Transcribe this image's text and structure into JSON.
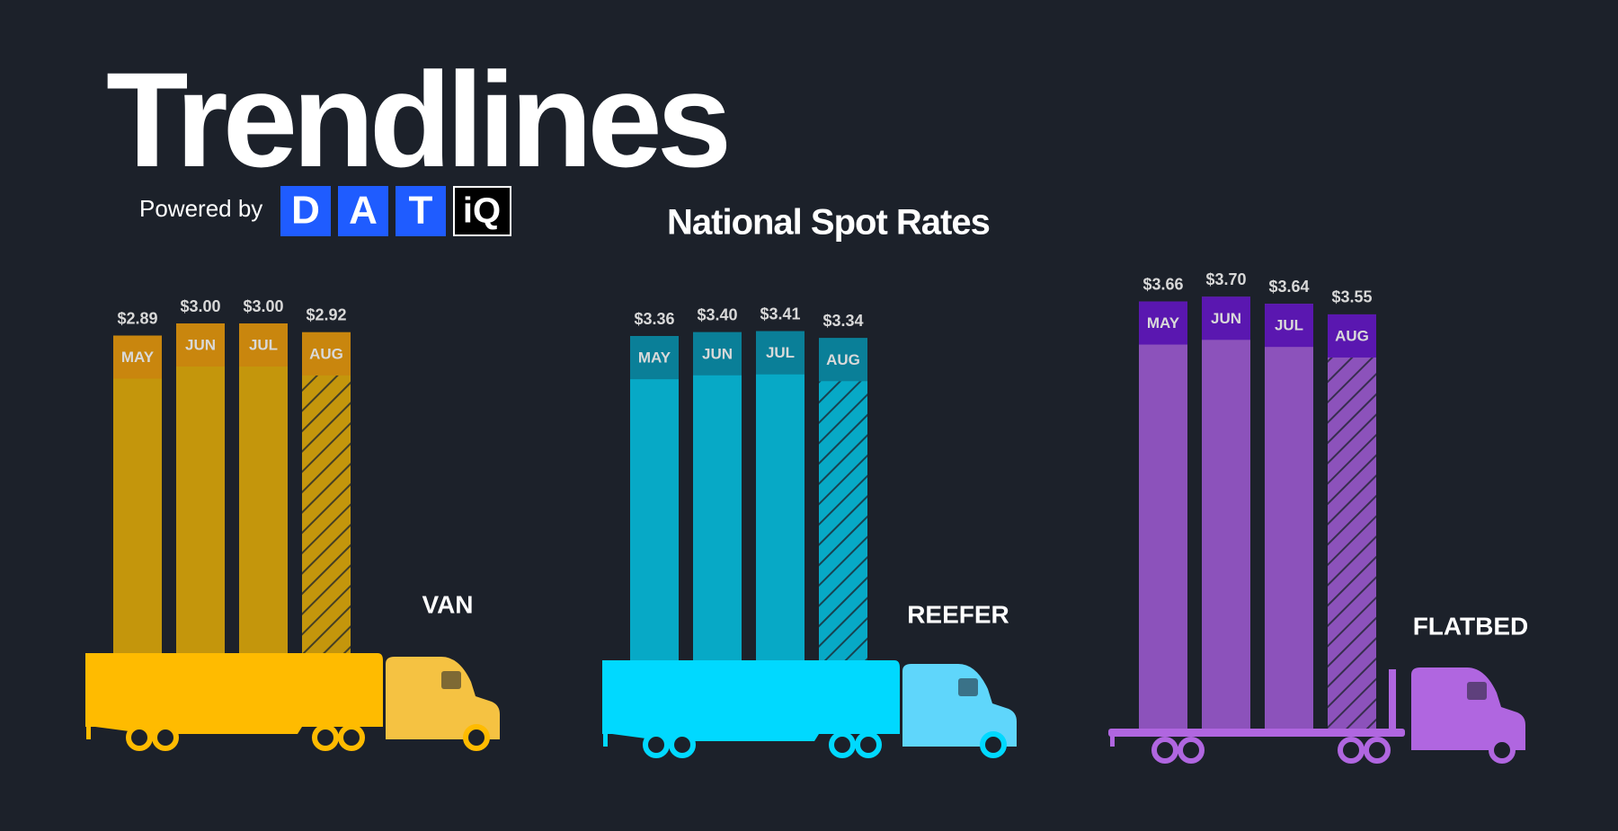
{
  "header": {
    "title": "Trendlines",
    "powered_by": "Powered by",
    "logo": [
      "D",
      "A",
      "T",
      "iQ"
    ],
    "subtitle": "National Spot Rates"
  },
  "chart_data": [
    {
      "type": "bar",
      "title": "VAN",
      "categories": [
        "MAY",
        "JUN",
        "JUL",
        "AUG"
      ],
      "values": [
        2.89,
        3.0,
        3.0,
        2.92
      ],
      "value_labels": [
        "$2.89",
        "$3.00",
        "$3.00",
        "$2.92"
      ],
      "ylim": [
        0,
        4
      ],
      "hatched": [
        false,
        false,
        false,
        true
      ],
      "color": "#c4960c",
      "label_color": "#c9860e",
      "truck_color": "#ffbb00",
      "cab_color": "#f5c242"
    },
    {
      "type": "bar",
      "title": "REEFER",
      "categories": [
        "MAY",
        "JUN",
        "JUL",
        "AUG"
      ],
      "values": [
        3.36,
        3.4,
        3.41,
        3.34
      ],
      "value_labels": [
        "$3.36",
        "$3.40",
        "$3.41",
        "$3.34"
      ],
      "ylim": [
        0,
        4
      ],
      "hatched": [
        false,
        false,
        false,
        true
      ],
      "color": "#07a9c6",
      "label_color": "#0a7f98",
      "truck_color": "#00d9ff",
      "cab_color": "#5fd6fb"
    },
    {
      "type": "bar",
      "title": "FLATBED",
      "categories": [
        "MAY",
        "JUN",
        "JUL",
        "AUG"
      ],
      "values": [
        3.66,
        3.7,
        3.64,
        3.55
      ],
      "value_labels": [
        "$3.66",
        "$3.70",
        "$3.64",
        "$3.55"
      ],
      "ylim": [
        0,
        4
      ],
      "hatched": [
        false,
        false,
        false,
        true
      ],
      "color": "#8c52bb",
      "label_color": "#5a17b0",
      "truck_color": "#b066e0",
      "cab_color": "#b066e0"
    }
  ]
}
